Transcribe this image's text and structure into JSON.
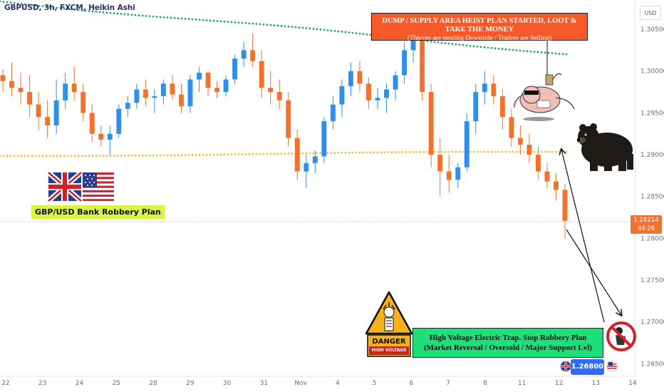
{
  "symbol_title": "GBPUSD, 3h, FXCM, Heikin Ashi",
  "currency_tag": "USD",
  "price_tag": {
    "price": "1.28214",
    "countdown": "44:26"
  },
  "plan_label": "GBP/USD Bank Robbery Plan",
  "dump_box": {
    "line1": "DUMP / SUPPLY AREA HEIST PLAN STARTED, LOOT & TAKE THE MONEY",
    "line2": "(Thieves are stealing Downside / Traders are Selling)"
  },
  "trap_box": {
    "line1": "High Voltage Electric Trap. Stop Robbery Plan",
    "line2": "(Market Reversal / Oversold / Major Support Lvl)"
  },
  "target_tag": "1.26800",
  "danger_sign": {
    "title": "DANGER",
    "subtitle": "HIGH VOLTAGE"
  },
  "colors": {
    "bull": "#2f8fea",
    "bear": "#f2712c",
    "ma_green": "#1aa77c",
    "ma_yellow": "#f2c12e",
    "background": "#ffffff"
  },
  "icons": [
    "uk-flag-icon",
    "us-flag-icon",
    "bear-icon",
    "thief-icon",
    "danger-sign-icon",
    "no-thief-icon"
  ],
  "chart_data": {
    "type": "candlestick",
    "style": "Heikin Ashi",
    "interval": "3h",
    "ylim": [
      1.2635,
      1.3085
    ],
    "y_ticks": [
      "1.30500",
      "1.30000",
      "1.29500",
      "1.29000",
      "1.28500",
      "1.28000",
      "1.27500",
      "1.27000",
      "1.26500"
    ],
    "x_ticks": [
      "22",
      "23",
      "24",
      "25",
      "28",
      "29",
      "30",
      "31",
      "Nov",
      "4",
      "5",
      "6",
      "7",
      "8",
      "11",
      "12",
      "13",
      "14"
    ],
    "last_price": 1.28214,
    "target": 1.268,
    "candles": [
      [
        1.2995,
        1.3002,
        1.2975,
        1.2988
      ],
      [
        1.2988,
        1.301,
        1.297,
        1.298
      ],
      [
        1.298,
        1.2998,
        1.296,
        1.2975
      ],
      [
        1.2975,
        1.2995,
        1.2945,
        1.296
      ],
      [
        1.296,
        1.2975,
        1.293,
        1.2945
      ],
      [
        1.2945,
        1.2965,
        1.292,
        1.2935
      ],
      [
        1.2935,
        1.299,
        1.2925,
        1.2965
      ],
      [
        1.2965,
        1.2998,
        1.2955,
        1.2985
      ],
      [
        1.2985,
        1.3005,
        1.2965,
        1.2975
      ],
      [
        1.2975,
        1.2985,
        1.294,
        1.295
      ],
      [
        1.295,
        1.296,
        1.2915,
        1.2925
      ],
      [
        1.2925,
        1.2935,
        1.291,
        1.2918
      ],
      [
        1.2918,
        1.2935,
        1.29,
        1.2925
      ],
      [
        1.2925,
        1.296,
        1.292,
        1.2955
      ],
      [
        1.2955,
        1.297,
        1.2945,
        1.2962
      ],
      [
        1.2962,
        1.2985,
        1.2955,
        1.2978
      ],
      [
        1.2978,
        1.299,
        1.2958,
        1.2968
      ],
      [
        1.2968,
        1.2978,
        1.295,
        1.297
      ],
      [
        1.297,
        1.299,
        1.296,
        1.2985
      ],
      [
        1.2985,
        1.2995,
        1.2965,
        1.2972
      ],
      [
        1.2972,
        1.2985,
        1.295,
        1.2958
      ],
      [
        1.2958,
        1.2995,
        1.295,
        1.299
      ],
      [
        1.299,
        1.3005,
        1.2975,
        1.2998
      ],
      [
        1.2998,
        1.3,
        1.297,
        1.298
      ],
      [
        1.298,
        1.2988,
        1.2968,
        1.2975
      ],
      [
        1.2975,
        1.2995,
        1.297,
        1.299
      ],
      [
        1.299,
        1.302,
        1.2985,
        1.3015
      ],
      [
        1.3015,
        1.3035,
        1.3005,
        1.3025
      ],
      [
        1.3025,
        1.3045,
        1.3005,
        1.3012
      ],
      [
        1.3012,
        1.3025,
        1.2968,
        1.298
      ],
      [
        1.298,
        1.3,
        1.296,
        1.2975
      ],
      [
        1.2975,
        1.299,
        1.2955,
        1.2965
      ],
      [
        1.2965,
        1.2975,
        1.291,
        1.292
      ],
      [
        1.292,
        1.293,
        1.287,
        1.288
      ],
      [
        1.288,
        1.29,
        1.286,
        1.289
      ],
      [
        1.289,
        1.2905,
        1.2878,
        1.2898
      ],
      [
        1.2898,
        1.2945,
        1.289,
        1.294
      ],
      [
        1.294,
        1.297,
        1.293,
        1.296
      ],
      [
        1.296,
        1.299,
        1.2945,
        1.2982
      ],
      [
        1.2982,
        1.301,
        1.297,
        1.3
      ],
      [
        1.3,
        1.3012,
        1.2975,
        1.2985
      ],
      [
        1.2985,
        1.2992,
        1.2955,
        1.2965
      ],
      [
        1.2965,
        1.298,
        1.2955,
        1.2968
      ],
      [
        1.2968,
        1.2985,
        1.295,
        1.2978
      ],
      [
        1.2978,
        1.3,
        1.2965,
        1.2995
      ],
      [
        1.2995,
        1.3035,
        1.2985,
        1.3025
      ],
      [
        1.3025,
        1.3055,
        1.301,
        1.304
      ],
      [
        1.304,
        1.305,
        1.2965,
        1.2975
      ],
      [
        1.2975,
        1.2985,
        1.2885,
        1.29
      ],
      [
        1.29,
        1.292,
        1.285,
        1.288
      ],
      [
        1.288,
        1.29,
        1.2855,
        1.287
      ],
      [
        1.287,
        1.289,
        1.286,
        1.2885
      ],
      [
        1.2885,
        1.295,
        1.288,
        1.294
      ],
      [
        1.294,
        1.2985,
        1.2925,
        1.2975
      ],
      [
        1.2975,
        1.3,
        1.296,
        1.2985
      ],
      [
        1.2985,
        1.2995,
        1.296,
        1.297
      ],
      [
        1.297,
        1.2978,
        1.293,
        1.2945
      ],
      [
        1.2945,
        1.2955,
        1.291,
        1.292
      ],
      [
        1.292,
        1.2935,
        1.29,
        1.2912
      ],
      [
        1.2912,
        1.2925,
        1.289,
        1.29
      ],
      [
        1.29,
        1.291,
        1.287,
        1.288
      ],
      [
        1.288,
        1.289,
        1.286,
        1.2868
      ],
      [
        1.2868,
        1.2878,
        1.2845,
        1.2858
      ],
      [
        1.2858,
        1.2865,
        1.28,
        1.2821
      ]
    ]
  }
}
